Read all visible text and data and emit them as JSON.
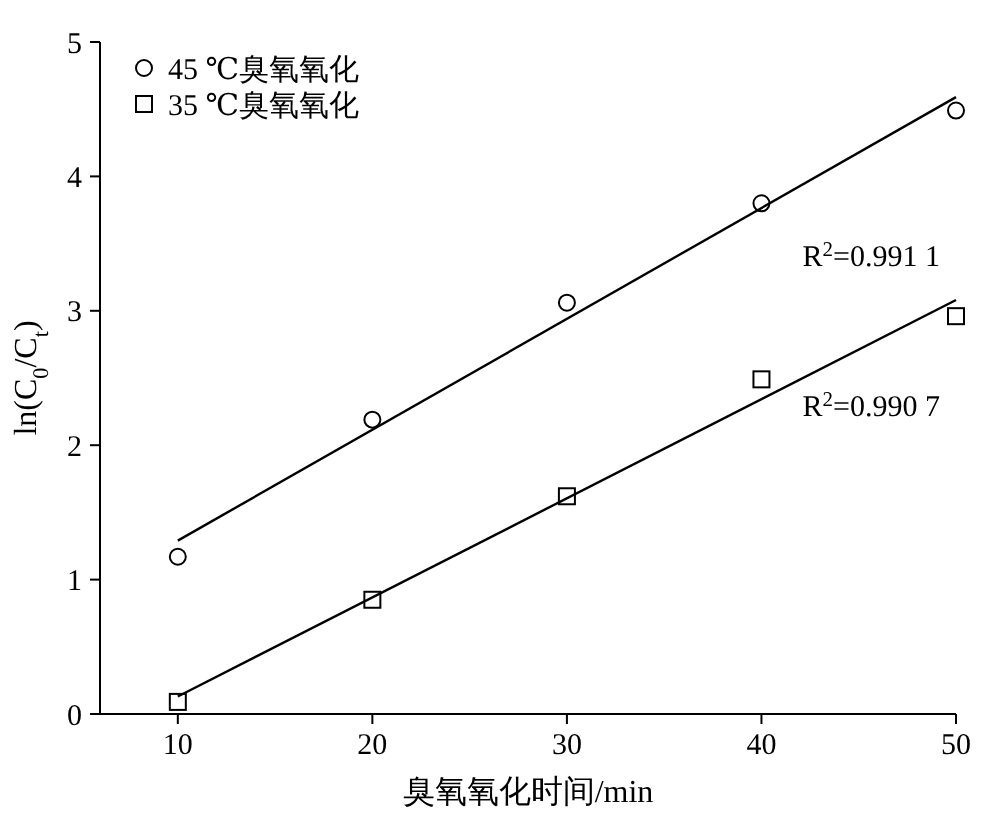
{
  "chart_data": {
    "type": "scatter",
    "xlabel": "臭氧氧化时间/min",
    "ylabel": "ln(C$_{0}$/C$_{t}$)",
    "xlim": [
      6,
      50
    ],
    "ylim": [
      0,
      5
    ],
    "xticks": [
      10,
      20,
      30,
      40,
      50
    ],
    "yticks": [
      0,
      1,
      2,
      3,
      4,
      5
    ],
    "grid": false,
    "legend": "top left",
    "series": [
      {
        "name": "45 ℃臭氧氧化",
        "marker": "circle",
        "color": "#000000",
        "x": [
          10,
          20,
          30,
          40,
          50
        ],
        "values": [
          1.17,
          2.19,
          3.06,
          3.8,
          4.49
        ]
      },
      {
        "name": "35 ℃臭氧氧化",
        "marker": "square",
        "color": "#000000",
        "x": [
          10,
          20,
          30,
          40,
          50
        ],
        "values": [
          0.09,
          0.85,
          1.62,
          2.49,
          2.96
        ]
      },
      {
        "type": "line",
        "line_style": "solid",
        "color": "#000000",
        "x": [
          10,
          50
        ],
        "values": [
          1.29,
          4.59
        ]
      },
      {
        "type": "line",
        "line_style": "solid",
        "color": "#000000",
        "x": [
          10,
          50
        ],
        "values": [
          0.13,
          3.08
        ]
      }
    ],
    "annotations": [
      "R$^{2}$=0.991 1",
      "R$^{2}$=0.990 7"
    ]
  }
}
